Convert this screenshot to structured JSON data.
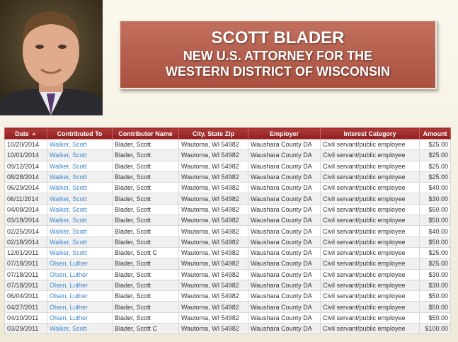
{
  "title": {
    "name": "SCOTT BLADER",
    "line1": "NEW U.S. ATTORNEY FOR THE",
    "line2": "WESTERN DISTRICT OF WISCONSIN"
  },
  "table": {
    "header": [
      "Date",
      "Contributed To",
      "Contributor Name",
      "City, State Zip",
      "Employer",
      "Interest Category",
      "Amount"
    ],
    "rows": [
      [
        "10/20/2014",
        "Walker, Scott",
        "Blader, Scott",
        "Wautoma, WI 54982",
        "Waushara County DA",
        "Civil servant/public employee",
        "$25.00"
      ],
      [
        "10/01/2014",
        "Walker, Scott",
        "Blader, Scott",
        "Wautoma, WI 54982",
        "Waushara County DA",
        "Civil servant/public employee",
        "$25.00"
      ],
      [
        "09/12/2014",
        "Walker, Scott",
        "Blader, Scott",
        "Wautoma, WI 54982",
        "Waushara County DA",
        "Civil servant/public employee",
        "$25.00"
      ],
      [
        "08/28/2014",
        "Walker, Scott",
        "Blader, Scott",
        "Wautoma, WI 54982",
        "Waushara County DA",
        "Civil servant/public employee",
        "$25.00"
      ],
      [
        "06/29/2014",
        "Walker, Scott",
        "Blader, Scott",
        "Wautoma, WI 54982",
        "Waushara County DA",
        "Civil servant/public employee",
        "$40.00"
      ],
      [
        "06/11/2014",
        "Walker, Scott",
        "Blader, Scott",
        "Wautoma, WI 54982",
        "Waushara County DA",
        "Civil servant/public employee",
        "$30.00"
      ],
      [
        "04/08/2014",
        "Walker, Scott",
        "Blader, Scott",
        "Wautoma, WI 54982",
        "Waushara County DA",
        "Civil servant/public employee",
        "$50.00"
      ],
      [
        "03/18/2014",
        "Walker, Scott",
        "Blader, Scott",
        "Wautoma, WI 54982",
        "Waushara County DA",
        "Civil servant/public employee",
        "$50.00"
      ],
      [
        "02/25/2014",
        "Walker, Scott",
        "Blader, Scott",
        "Wautoma, WI 54982",
        "Waushara County DA",
        "Civil servant/public employee",
        "$40.00"
      ],
      [
        "02/18/2014",
        "Walker, Scott",
        "Blader, Scott",
        "Wautoma, WI 54982",
        "Waushara County DA",
        "Civil servant/public employee",
        "$50.00"
      ],
      [
        "12/01/2011",
        "Walker, Scott",
        "Blader, Scott C",
        "Wautoma, WI 54982",
        "Waushara County DA",
        "Civil servant/public employee",
        "$25.00"
      ],
      [
        "07/18/2011",
        "Olsen, Luther",
        "Blader, Scott",
        "Wautoma, WI 54982",
        "Waushara County DA",
        "Civil servant/public employee",
        "$25.00"
      ],
      [
        "07/18/2011",
        "Olsen, Luther",
        "Blader, Scott",
        "Wautoma, WI 54982",
        "Waushara County DA",
        "Civil servant/public employee",
        "$30.00"
      ],
      [
        "07/18/2011",
        "Olsen, Luther",
        "Blader, Scott",
        "Wautoma, WI 54982",
        "Waushara County DA",
        "Civil servant/public employee",
        "$30.00"
      ],
      [
        "06/04/2011",
        "Olsen, Luther",
        "Blader, Scott",
        "Wautoma, WI 54982",
        "Waushara County DA",
        "Civil servant/public employee",
        "$50.00"
      ],
      [
        "04/27/2011",
        "Olsen, Luther",
        "Blader, Scott",
        "Wautoma, WI 54982",
        "Waushara County DA",
        "Civil servant/public employee",
        "$50.00"
      ],
      [
        "04/10/2011",
        "Olsen, Luther",
        "Blader, Scott",
        "Wautoma, WI 54982",
        "Waushara County DA",
        "Civil servant/public employee",
        "$50.00"
      ],
      [
        "03/29/2011",
        "Walker, Scott",
        "Blader, Scott C",
        "Wautoma, WI 54982",
        "Waushara County DA",
        "Civil servant/public employee",
        "$100.00"
      ]
    ]
  }
}
